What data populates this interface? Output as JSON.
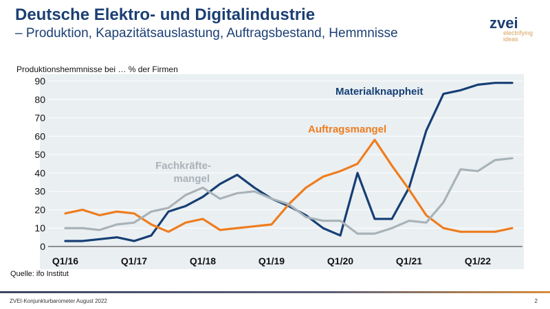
{
  "header": {
    "title": "Deutsche Elektro- und Digitalindustrie",
    "subtitle": "– Produktion, Kapazitätsauslastung, Auftragsbestand, Hemmnisse"
  },
  "logo": {
    "word": "zvei",
    "tagline1": "electrifying",
    "tagline2": "ideas"
  },
  "footer": {
    "source": "Quelle: ifo Institut",
    "left": "ZVEI-Konjunkturbarometer August 2022",
    "page": "2"
  },
  "chart_data": {
    "type": "line",
    "ylabel": "Produktionshemmnisse bei … % der Firmen",
    "ylim": [
      0,
      90
    ],
    "yticks": [
      0,
      10,
      20,
      30,
      40,
      50,
      60,
      70,
      80,
      90
    ],
    "grid": true,
    "xticks": [
      "Q1/16",
      "Q1/17",
      "Q1/18",
      "Q1/19",
      "Q1/20",
      "Q1/21",
      "Q1/22"
    ],
    "x": [
      "Q1/16",
      "Q2/16",
      "Q3/16",
      "Q4/16",
      "Q1/17",
      "Q2/17",
      "Q3/17",
      "Q4/17",
      "Q1/18",
      "Q2/18",
      "Q3/18",
      "Q4/18",
      "Q1/19",
      "Q2/19",
      "Q3/19",
      "Q4/19",
      "Q1/20",
      "Q2/20",
      "Q3/20",
      "Q4/20",
      "Q1/21",
      "Q2/21",
      "Q3/21",
      "Q4/21",
      "Q1/22",
      "Q2/22",
      "Q3/22"
    ],
    "series": [
      {
        "name": "Materialknappheit",
        "color": "#163f74",
        "values": [
          3,
          3,
          4,
          5,
          3,
          6,
          19,
          22,
          27,
          34,
          39,
          32,
          26,
          22,
          17,
          10,
          6,
          40,
          15,
          15,
          32,
          63,
          83,
          85,
          88,
          89,
          89
        ]
      },
      {
        "name": "Auftragsmangel",
        "color": "#ee7d1e",
        "values": [
          18,
          20,
          17,
          19,
          18,
          12,
          8,
          13,
          15,
          9,
          10,
          11,
          12,
          23,
          32,
          38,
          41,
          45,
          58,
          44,
          31,
          17,
          10,
          8,
          8,
          8,
          10
        ]
      },
      {
        "name": "Fachkräfte-\nmangel",
        "label1": "Fachkräfte-",
        "label2": "mangel",
        "color": "#a8b3b8",
        "values": [
          10,
          10,
          9,
          12,
          13,
          19,
          21,
          28,
          32,
          26,
          29,
          30,
          26,
          23,
          16,
          14,
          14,
          7,
          7,
          10,
          14,
          13,
          24,
          42,
          41,
          47,
          48
        ]
      }
    ]
  }
}
